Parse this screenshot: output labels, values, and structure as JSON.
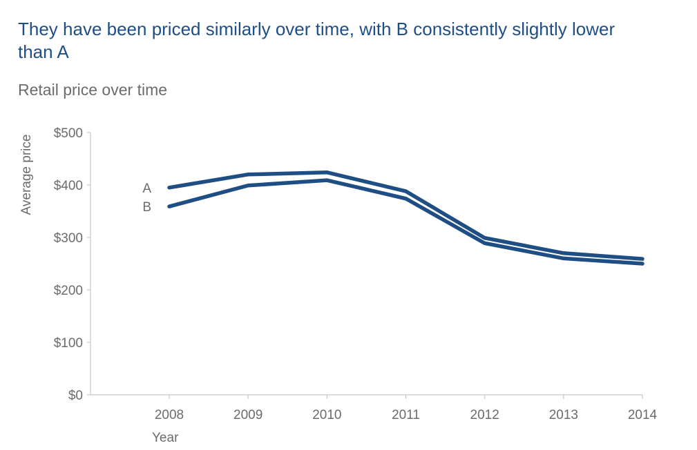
{
  "chart_data": {
    "type": "line",
    "title": "They have been priced similarly over time, with B consistently slightly lower than A",
    "subtitle": "Retail price over time",
    "xlabel": "Year",
    "ylabel": "Average price",
    "x": [
      "2008",
      "2009",
      "2010",
      "2011",
      "2012",
      "2013",
      "2014"
    ],
    "ylim": [
      0,
      500
    ],
    "yticks": [
      0,
      100,
      200,
      300,
      400,
      500
    ],
    "ytick_labels": [
      "$0",
      "$100",
      "$200",
      "$300",
      "$400",
      "$500"
    ],
    "grid": false,
    "legend": "direct labels at left of lines",
    "color": "#1f4e85",
    "series": [
      {
        "name": "A",
        "values": [
          395,
          420,
          424,
          388,
          299,
          270,
          259
        ]
      },
      {
        "name": "B",
        "values": [
          359,
          399,
          409,
          374,
          289,
          260,
          250
        ]
      }
    ]
  }
}
